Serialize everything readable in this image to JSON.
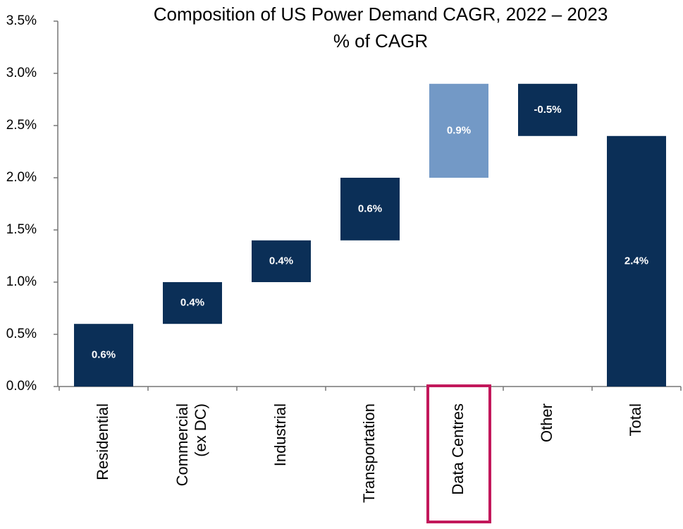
{
  "chart_data": {
    "type": "waterfall",
    "title": "Composition of US Power Demand CAGR, 2022 – 2023",
    "subtitle": "% of CAGR",
    "categories": [
      "Residential",
      "Commercial\n(ex DC)",
      "Industrial",
      "Transportation",
      "Data Centres",
      "Other",
      "Total"
    ],
    "values": [
      0.6,
      0.4,
      0.4,
      0.6,
      0.9,
      -0.5,
      2.4
    ],
    "value_labels": [
      "0.6%",
      "0.4%",
      "0.4%",
      "0.6%",
      "0.9%",
      "-0.5%",
      "2.4%"
    ],
    "colors": [
      "#0b2f57",
      "#0b2f57",
      "#0b2f57",
      "#0b2f57",
      "#7399c6",
      "#0b2f57",
      "#0b2f57"
    ],
    "ylim": [
      0,
      3.5
    ],
    "yticks": [
      {
        "value": 0,
        "label": "0.0%"
      },
      {
        "value": 0.5,
        "label": "0.5%"
      },
      {
        "value": 1,
        "label": "1.0%"
      },
      {
        "value": 1.5,
        "label": "1.5%"
      },
      {
        "value": 2,
        "label": "2.0%"
      },
      {
        "value": 2.5,
        "label": "2.5%"
      },
      {
        "value": 3,
        "label": "3.0%"
      },
      {
        "value": 3.5,
        "label": "3.5%"
      }
    ],
    "highlight": {
      "index": 4,
      "color": "#c2185b"
    }
  }
}
